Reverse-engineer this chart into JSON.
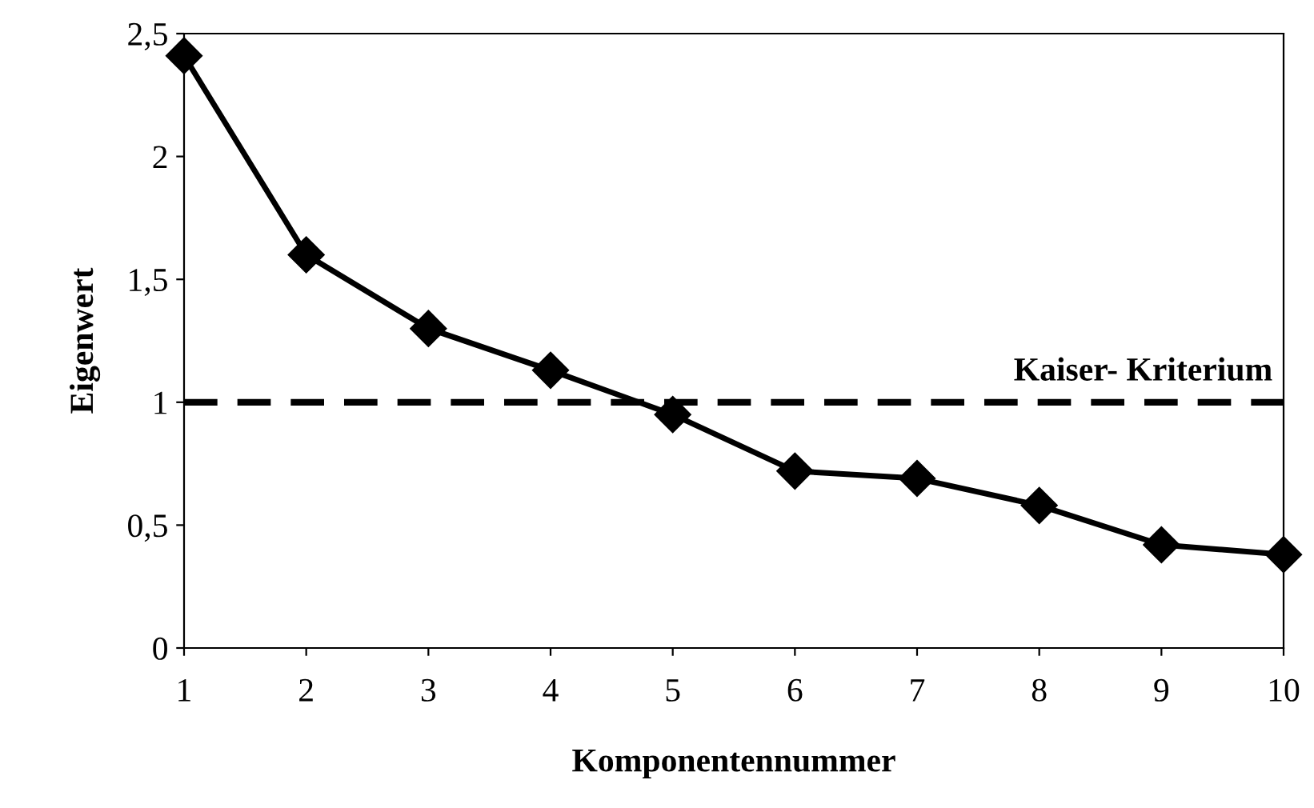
{
  "chart_data": {
    "type": "line",
    "xlabel": "Komponentennummer",
    "ylabel": "Eigenwert",
    "x": [
      1,
      2,
      3,
      4,
      5,
      6,
      7,
      8,
      9,
      10
    ],
    "series": [
      {
        "color": "#000000",
        "values": [
          2.41,
          1.6,
          1.3,
          1.13,
          0.95,
          0.72,
          0.69,
          0.58,
          0.42,
          0.38
        ]
      }
    ],
    "xlim": [
      1,
      10
    ],
    "xticks": [
      1,
      2,
      3,
      4,
      5,
      6,
      7,
      8,
      9,
      10
    ],
    "ylim": [
      0,
      2.5
    ],
    "yticks": [
      {
        "value": 0,
        "label": "0"
      },
      {
        "value": 0.5,
        "label": "0,5"
      },
      {
        "value": 1,
        "label": "1"
      },
      {
        "value": 1.5,
        "label": "1,5"
      },
      {
        "value": 2,
        "label": "2"
      },
      {
        "value": 2.5,
        "label": "2,5"
      }
    ],
    "ref_lines": [
      {
        "axis": "y",
        "value": 1,
        "label": "Kaiser- Kriterium",
        "color": "#000000",
        "line_style": "dashed"
      }
    ],
    "marker": "diamond",
    "line_style": "solid",
    "grid": false,
    "legend": false
  }
}
